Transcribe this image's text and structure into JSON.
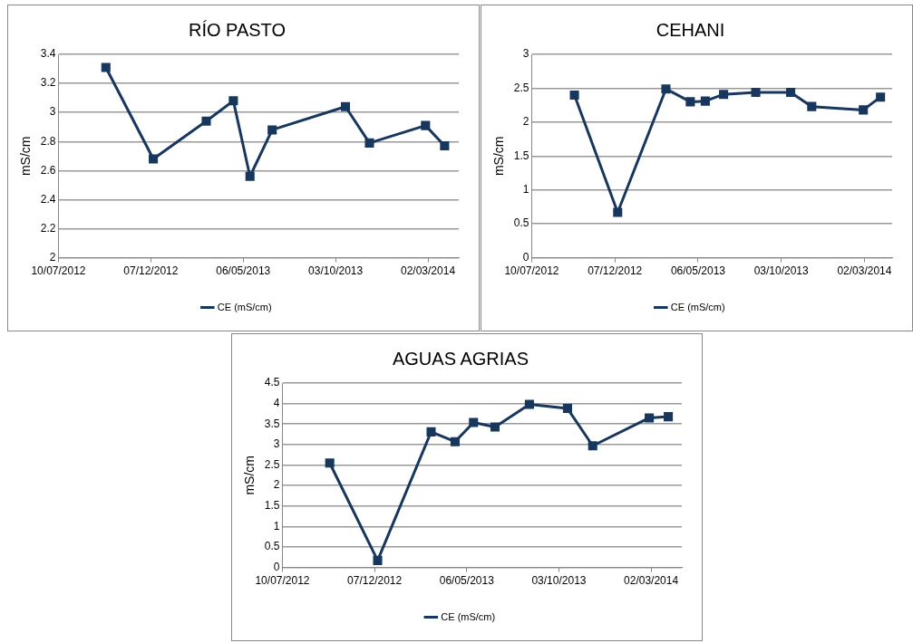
{
  "chart_data": [
    {
      "type": "line",
      "title": "RÍO PASTO",
      "ylabel": "mS/cm",
      "x": [
        "2012-09-25",
        "2012-12-11",
        "2013-03-07",
        "2013-04-20",
        "2013-05-17",
        "2013-06-22",
        "2013-10-19",
        "2013-11-27",
        "2014-02-26",
        "2014-03-29"
      ],
      "series": [
        {
          "name": "CE (mS/cm)",
          "color": "#17375e",
          "values": [
            3.31,
            2.68,
            2.94,
            3.08,
            2.56,
            2.88,
            3.04,
            2.79,
            2.91,
            2.77
          ]
        }
      ],
      "xlim": [
        "2012-07-10",
        "2014-04-21"
      ],
      "xticks": [
        {
          "value": "2012-07-10",
          "label": "10/07/2012"
        },
        {
          "value": "2012-12-07",
          "label": "07/12/2012"
        },
        {
          "value": "2013-05-06",
          "label": "06/05/2013"
        },
        {
          "value": "2013-10-03",
          "label": "03/10/2013"
        },
        {
          "value": "2014-03-02",
          "label": "02/03/2014"
        }
      ],
      "ylim": [
        2,
        3.4
      ],
      "yticks": [
        2,
        2.2,
        2.4,
        2.6,
        2.8,
        3,
        3.2,
        3.4
      ],
      "grid": "y",
      "legend": "bottom",
      "marker": "square",
      "line_style": "solid"
    },
    {
      "type": "line",
      "title": "CEHANI",
      "ylabel": "mS/cm",
      "x": [
        "2012-09-25",
        "2012-12-12",
        "2013-03-09",
        "2013-04-22",
        "2013-05-19",
        "2013-06-21",
        "2013-08-18",
        "2013-10-20",
        "2013-11-27",
        "2014-02-28",
        "2014-03-31"
      ],
      "series": [
        {
          "name": "CE (mS/cm)",
          "color": "#17375e",
          "values": [
            2.4,
            0.67,
            2.49,
            2.3,
            2.31,
            2.41,
            2.44,
            2.44,
            2.23,
            2.18,
            2.37
          ]
        }
      ],
      "xlim": [
        "2012-07-10",
        "2014-04-21"
      ],
      "xticks": [
        {
          "value": "2012-07-10",
          "label": "10/07/2012"
        },
        {
          "value": "2012-12-07",
          "label": "07/12/2012"
        },
        {
          "value": "2013-05-06",
          "label": "06/05/2013"
        },
        {
          "value": "2013-10-03",
          "label": "03/10/2013"
        },
        {
          "value": "2014-03-02",
          "label": "02/03/2014"
        }
      ],
      "ylim": [
        0,
        3
      ],
      "yticks": [
        0,
        0.5,
        1,
        1.5,
        2,
        2.5,
        3
      ],
      "grid": "y",
      "legend": "bottom",
      "marker": "square",
      "line_style": "solid"
    },
    {
      "type": "line",
      "title": "AGUAS AGRIAS",
      "ylabel": "mS/cm",
      "x": [
        "2012-09-25",
        "2012-12-12",
        "2013-03-09",
        "2013-04-17",
        "2013-05-17",
        "2013-06-21",
        "2013-08-16",
        "2013-10-17",
        "2013-11-27",
        "2014-02-27",
        "2014-03-30"
      ],
      "series": [
        {
          "name": "CE (mS/cm)",
          "color": "#17375e",
          "values": [
            2.55,
            0.17,
            3.31,
            3.07,
            3.54,
            3.43,
            3.98,
            3.88,
            2.97,
            3.65,
            3.68
          ]
        }
      ],
      "xlim": [
        "2012-07-10",
        "2014-04-21"
      ],
      "xticks": [
        {
          "value": "2012-07-10",
          "label": "10/07/2012"
        },
        {
          "value": "2012-12-07",
          "label": "07/12/2012"
        },
        {
          "value": "2013-05-06",
          "label": "06/05/2013"
        },
        {
          "value": "2013-10-03",
          "label": "03/10/2013"
        },
        {
          "value": "2014-03-02",
          "label": "02/03/2014"
        }
      ],
      "ylim": [
        0,
        4.5
      ],
      "yticks": [
        0,
        0.5,
        1,
        1.5,
        2,
        2.5,
        3,
        3.5,
        4,
        4.5
      ],
      "grid": "y",
      "legend": "bottom",
      "marker": "square",
      "line_style": "solid"
    }
  ]
}
